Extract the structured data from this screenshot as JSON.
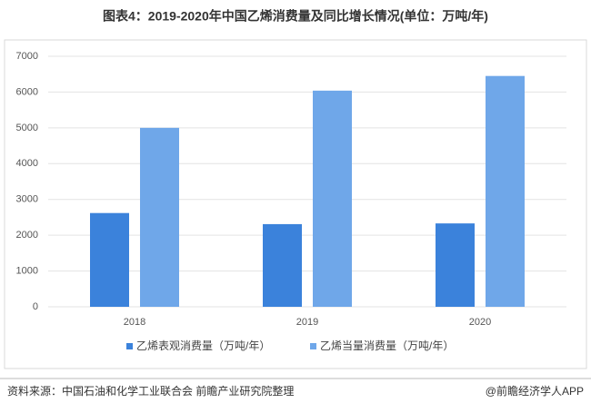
{
  "chart_data": {
    "type": "bar",
    "title": "图表4：2019-2020年中国乙烯消费量及同比增长情况(单位：万吨/年)",
    "categories": [
      "2018",
      "2019",
      "2020"
    ],
    "series": [
      {
        "name": "乙烯表观消费量（万吨/年）",
        "color": "#3b82db",
        "values": [
          2620,
          2310,
          2330
        ]
      },
      {
        "name": "乙烯当量消费量（万吨/年）",
        "color": "#6fa7e9",
        "values": [
          5000,
          6040,
          6450
        ]
      }
    ],
    "ylim": [
      0,
      7000
    ],
    "yticks": [
      0,
      1000,
      2000,
      3000,
      4000,
      5000,
      6000,
      7000
    ],
    "grid": true,
    "source": "资料来源：中国石油和化学工业联合会 前瞻产业研究院整理",
    "brand": "@前瞻经济学人APP"
  }
}
